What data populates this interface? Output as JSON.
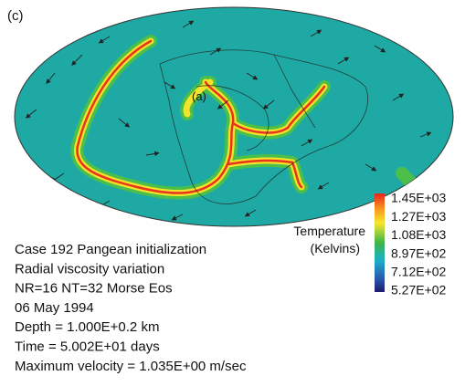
{
  "panel_label": "(c)",
  "map": {
    "annotation": "(a)"
  },
  "legend": {
    "title": "Temperature",
    "units": "(Kelvins)",
    "labels": [
      "1.45E+03",
      "1.27E+03",
      "1.08E+03",
      "8.97E+02",
      "7.12E+02",
      "5.27E+02"
    ]
  },
  "info": [
    "Case 192 Pangean initialization",
    "Radial viscosity variation",
    "NR=16 NT=32 Morse Eos",
    "06 May 1994",
    "Depth = 1.000E+0.2 km",
    "Time = 5.002E+01 days",
    "Maximum velocity = 1.035E+00 m/sec"
  ]
}
